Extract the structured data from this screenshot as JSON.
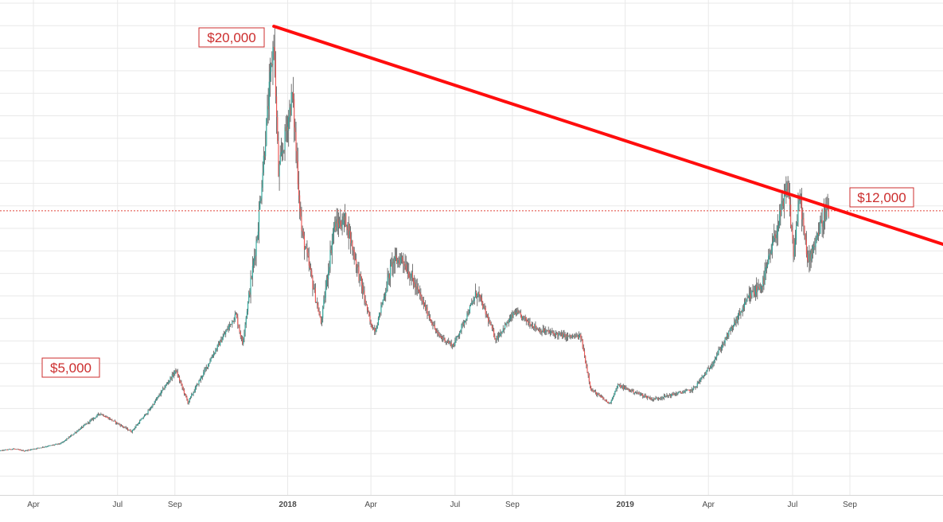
{
  "chart_data": {
    "type": "candlestick",
    "title": "",
    "xlabel": "",
    "ylabel": "",
    "x_ticks": [
      {
        "label": "Apr",
        "date": "2017-04-01",
        "bold": false
      },
      {
        "label": "Jul",
        "date": "2017-07-01",
        "bold": false
      },
      {
        "label": "Sep",
        "date": "2017-09-01",
        "bold": false
      },
      {
        "label": "2018",
        "date": "2018-01-01",
        "bold": true
      },
      {
        "label": "Apr",
        "date": "2018-04-01",
        "bold": false
      },
      {
        "label": "Jul",
        "date": "2018-07-01",
        "bold": false
      },
      {
        "label": "Sep",
        "date": "2018-09-01",
        "bold": false
      },
      {
        "label": "2019",
        "date": "2019-01-01",
        "bold": true
      },
      {
        "label": "Apr",
        "date": "2019-04-01",
        "bold": false
      },
      {
        "label": "Jul",
        "date": "2019-07-01",
        "bold": false
      },
      {
        "label": "Sep",
        "date": "2019-09-01",
        "bold": false
      }
    ],
    "price_keypoints": [
      [
        "2017-02-15",
        1000
      ],
      [
        "2017-03-10",
        1150
      ],
      [
        "2017-03-22",
        1050
      ],
      [
        "2017-05-01",
        1400
      ],
      [
        "2017-05-25",
        2200
      ],
      [
        "2017-06-12",
        2800
      ],
      [
        "2017-07-16",
        1950
      ],
      [
        "2017-08-05",
        3000
      ],
      [
        "2017-09-02",
        4800
      ],
      [
        "2017-09-15",
        3300
      ],
      [
        "2017-10-12",
        5500
      ],
      [
        "2017-11-06",
        7300
      ],
      [
        "2017-11-13",
        6000
      ],
      [
        "2017-11-29",
        10800
      ],
      [
        "2017-12-17",
        19500
      ],
      [
        "2017-12-22",
        13500
      ],
      [
        "2018-01-06",
        17000
      ],
      [
        "2018-01-16",
        11000
      ],
      [
        "2018-02-06",
        6900
      ],
      [
        "2018-02-20",
        11200
      ],
      [
        "2018-03-05",
        11500
      ],
      [
        "2018-04-01",
        6800
      ],
      [
        "2018-04-06",
        6600
      ],
      [
        "2018-04-24",
        9600
      ],
      [
        "2018-05-05",
        9800
      ],
      [
        "2018-06-12",
        6400
      ],
      [
        "2018-06-29",
        5900
      ],
      [
        "2018-07-25",
        8300
      ],
      [
        "2018-08-14",
        6200
      ],
      [
        "2018-09-04",
        7400
      ],
      [
        "2018-09-30",
        6600
      ],
      [
        "2018-10-31",
        6300
      ],
      [
        "2018-11-14",
        6300
      ],
      [
        "2018-11-25",
        3900
      ],
      [
        "2018-12-15",
        3250
      ],
      [
        "2018-12-24",
        4100
      ],
      [
        "2019-01-31",
        3450
      ],
      [
        "2019-03-15",
        3900
      ],
      [
        "2019-04-02",
        4900
      ],
      [
        "2019-05-14",
        8000
      ],
      [
        "2019-05-30",
        8700
      ],
      [
        "2019-06-26",
        13000
      ],
      [
        "2019-07-02",
        10000
      ],
      [
        "2019-07-09",
        12600
      ],
      [
        "2019-07-17",
        9600
      ],
      [
        "2019-08-06",
        11900
      ],
      [
        "2019-08-09",
        11800
      ]
    ],
    "trendline": {
      "from": {
        "date": "2017-12-17",
        "price": 20000
      },
      "to": {
        "date": "2019-08-14",
        "price": 12000
      },
      "extends": "right",
      "color": "#ff0d0d"
    },
    "horizontal_line": {
      "price": 11900,
      "color": "#e0443a",
      "style": "dotted"
    },
    "annotations": [
      {
        "text": "$20,000",
        "anchor": "trendline-start"
      },
      {
        "text": "$12,000",
        "anchor": "trendline-cross"
      },
      {
        "text": "$5,000",
        "anchor": "left"
      }
    ],
    "colors": {
      "up": "#26a69a",
      "down": "#ef5350",
      "wick": "#555555",
      "grid": "#e9e9e9",
      "annotation": "#cc2d2d"
    },
    "grid": true,
    "legend": "none"
  }
}
